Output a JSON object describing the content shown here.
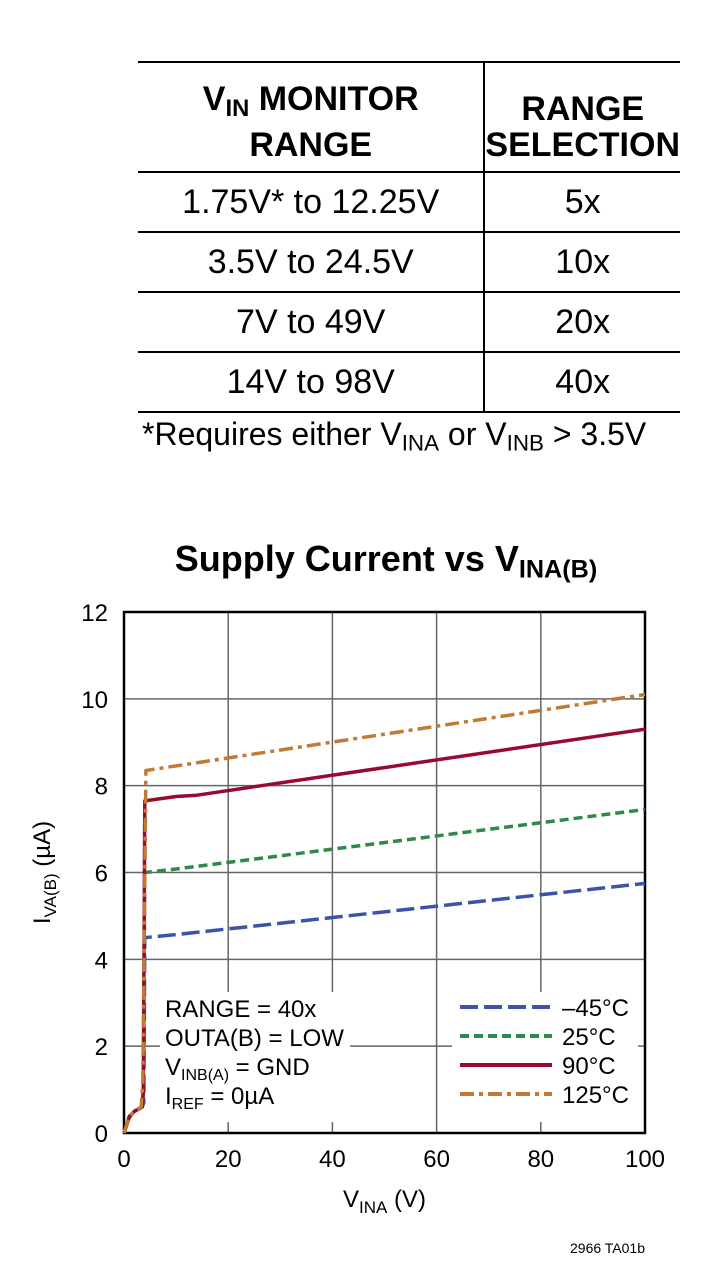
{
  "table": {
    "headers": {
      "col1_main": "V",
      "col1_sub": "IN",
      "col1_rest": " MONITOR RANGE",
      "col2_line1": "RANGE",
      "col2_line2": "SELECTION"
    },
    "rows": [
      {
        "range": "1.75V* to 12.25V",
        "selection": "5x"
      },
      {
        "range": "3.5V to 24.5V",
        "selection": "10x"
      },
      {
        "range": "7V to 49V",
        "selection": "20x"
      },
      {
        "range": "14V to 98V",
        "selection": "40x"
      }
    ],
    "footnote": {
      "a": "*Requires either V",
      "a_sub": "INA",
      "b": " or V",
      "b_sub": "INB",
      "c": " > 3.5V"
    }
  },
  "chart_data": {
    "type": "line",
    "title": {
      "main": "Supply Current vs V",
      "sub": "INA(B)"
    },
    "xlabel": {
      "main": "V",
      "sub": "INA",
      "rest": " (V)"
    },
    "ylabel": {
      "main": "I",
      "sub": "VA(B)",
      "rest": " (µA)"
    },
    "xlim": [
      0,
      100
    ],
    "ylim": [
      0,
      12
    ],
    "xticks": [
      "0",
      "20",
      "40",
      "60",
      "80",
      "100"
    ],
    "yticks": [
      "0",
      "2",
      "4",
      "6",
      "8",
      "10",
      "12"
    ],
    "grid": true,
    "legend_placement": "bottom-right",
    "annotations": [
      {
        "main": "RANGE = 40x"
      },
      {
        "main": "OUTA(B) = LOW"
      },
      {
        "main": "V",
        "sub": "INB(A)",
        "rest": " = GND"
      },
      {
        "main": "I",
        "sub": "REF",
        "rest": " = 0µA"
      }
    ],
    "series": [
      {
        "name": "–45°C",
        "color": "#3a55a8",
        "dash": "long-dash",
        "x": [
          0,
          1,
          2,
          3.5,
          3.8,
          4,
          10,
          100
        ],
        "y": [
          0,
          0.35,
          0.5,
          0.6,
          0.7,
          4.5,
          4.57,
          5.75
        ]
      },
      {
        "name": "25°C",
        "color": "#2e8a48",
        "dash": "short-dash",
        "x": [
          0,
          1,
          2,
          3.5,
          3.7,
          4,
          10,
          100
        ],
        "y": [
          0,
          0.35,
          0.5,
          0.6,
          0.8,
          6.0,
          6.08,
          7.45
        ]
      },
      {
        "name": "90°C",
        "color": "#9a0a30",
        "dash": "solid",
        "x": [
          0,
          1,
          2,
          3.5,
          3.7,
          4,
          10,
          14,
          100
        ],
        "y": [
          0,
          0.38,
          0.5,
          0.6,
          1,
          7.65,
          7.75,
          7.78,
          9.3
        ]
      },
      {
        "name": "125°C",
        "color": "#c07a35",
        "dash": "dash-dot",
        "x": [
          0,
          1,
          2,
          3.3,
          3.6,
          4.2,
          100
        ],
        "y": [
          0,
          0.38,
          0.5,
          0.6,
          1.2,
          8.35,
          10.1
        ]
      }
    ]
  },
  "footer_code": "2966 TA01b"
}
